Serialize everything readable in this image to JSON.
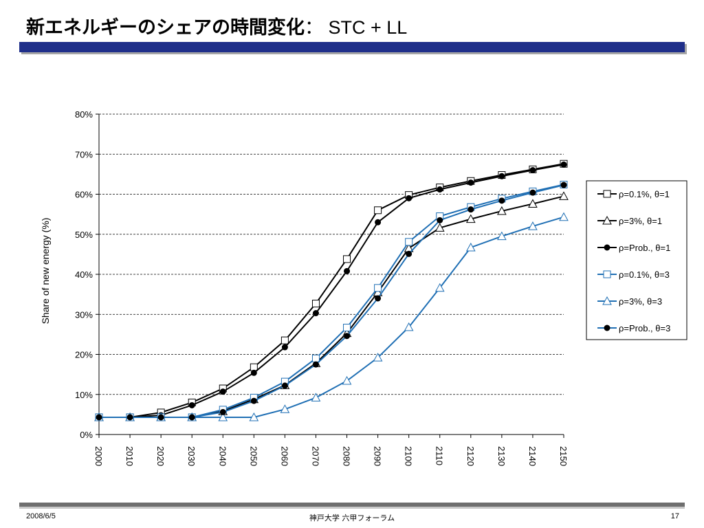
{
  "slide": {
    "title_main": "新エネルギーのシェアの時間変化",
    "title_suffix": "： STC + LL",
    "title_bar_color": "#1f2f8a"
  },
  "footer": {
    "date": "2008/6/5",
    "center": "神戸大学 六甲フォーラム",
    "page": "17"
  },
  "chart_data": {
    "type": "line",
    "title": "",
    "xlabel": "",
    "ylabel": "Share of new energy (%)",
    "xlim": [
      2000,
      2150
    ],
    "ylim": [
      0,
      80
    ],
    "x_tick_labels": [
      "2000",
      "2010",
      "2020",
      "2030",
      "2040",
      "2050",
      "2060",
      "2070",
      "2080",
      "2090",
      "2100",
      "2110",
      "2120",
      "2130",
      "2140",
      "2150"
    ],
    "y_tick_labels": [
      "0%",
      "10%",
      "20%",
      "30%",
      "40%",
      "50%",
      "60%",
      "70%",
      "80%"
    ],
    "y_ticks": [
      0,
      10,
      20,
      30,
      40,
      50,
      60,
      70,
      80
    ],
    "grid": "horizontal-dashed",
    "legend_position": "right",
    "x": [
      2000,
      2010,
      2020,
      2030,
      2040,
      2050,
      2060,
      2070,
      2080,
      2090,
      2100,
      2110,
      2120,
      2130,
      2140,
      2150
    ],
    "series": [
      {
        "name": "ρ=0.1%, θ=1",
        "color": "#000000",
        "marker": "square-open",
        "values": [
          4.3,
          4.3,
          5.5,
          8.0,
          11.5,
          16.8,
          23.5,
          32.7,
          43.8,
          56.0,
          59.8,
          61.7,
          63.3,
          64.8,
          66.2,
          67.6
        ]
      },
      {
        "name": "ρ=3%, θ=1",
        "color": "#000000",
        "marker": "triangle-open",
        "values": [
          4.3,
          4.3,
          4.3,
          4.3,
          5.8,
          8.8,
          12.3,
          17.8,
          25.3,
          35.5,
          46.5,
          51.6,
          53.8,
          55.8,
          57.6,
          59.5
        ]
      },
      {
        "name": "ρ=Prob., θ=1",
        "color": "#000000",
        "marker": "circle-filled",
        "values": [
          4.3,
          4.3,
          4.8,
          7.3,
          10.7,
          15.4,
          21.8,
          30.3,
          40.8,
          53.0,
          59.0,
          61.2,
          62.9,
          64.5,
          66.0,
          67.4
        ]
      },
      {
        "name": "ρ=0.1%, θ=3",
        "color": "#1f6fb4",
        "marker": "square-open",
        "values": [
          4.3,
          4.3,
          4.3,
          4.3,
          6.2,
          9.2,
          13.2,
          19.0,
          26.7,
          36.6,
          48.1,
          54.5,
          56.8,
          58.9,
          60.7,
          62.4
        ]
      },
      {
        "name": "ρ=3%, θ=3",
        "color": "#1f6fb4",
        "marker": "triangle-open",
        "values": [
          4.3,
          4.3,
          4.3,
          4.3,
          4.3,
          4.3,
          6.3,
          9.2,
          13.4,
          19.2,
          26.8,
          36.6,
          46.7,
          49.5,
          52.0,
          54.3
        ]
      },
      {
        "name": "ρ=Prob., θ=3",
        "color": "#1f6fb4",
        "marker": "circle-filled",
        "values": [
          4.3,
          4.3,
          4.3,
          4.3,
          5.6,
          8.4,
          12.2,
          17.5,
          24.6,
          34.0,
          45.1,
          53.5,
          56.2,
          58.4,
          60.4,
          62.3
        ]
      }
    ]
  }
}
